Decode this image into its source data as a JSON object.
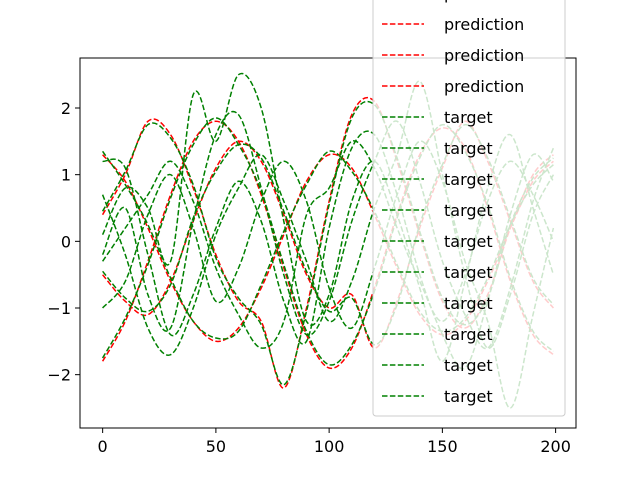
{
  "chart_data": {
    "type": "line",
    "title": "",
    "xlabel": "",
    "ylabel": "",
    "xlim": [
      -10,
      209
    ],
    "ylim": [
      -2.8,
      2.75
    ],
    "x_ticks": [
      0,
      50,
      100,
      150,
      200
    ],
    "y_ticks": [
      -2,
      -1,
      0,
      1,
      2
    ],
    "y_tick_labels": [
      "−2",
      "−1",
      "0",
      "1",
      "2"
    ],
    "grid": false,
    "legend": {
      "placement": "top-right",
      "entries": [
        {
          "label": "prediction",
          "color": "#ff0000"
        },
        {
          "label": "prediction",
          "color": "#ff0000"
        },
        {
          "label": "prediction",
          "color": "#ff0000"
        },
        {
          "label": "prediction",
          "color": "#ff0000"
        },
        {
          "label": "target",
          "color": "#008000"
        },
        {
          "label": "target",
          "color": "#008000"
        },
        {
          "label": "target",
          "color": "#008000"
        },
        {
          "label": "target",
          "color": "#008000"
        },
        {
          "label": "target",
          "color": "#008000"
        },
        {
          "label": "target",
          "color": "#008000"
        },
        {
          "label": "target",
          "color": "#008000"
        },
        {
          "label": "target",
          "color": "#008000"
        },
        {
          "label": "target",
          "color": "#008000"
        },
        {
          "label": "target",
          "color": "#008000"
        }
      ]
    },
    "x": [
      0,
      10,
      20,
      30,
      40,
      50,
      60,
      70,
      80,
      90,
      100,
      110,
      120,
      130,
      140,
      150,
      160,
      170,
      180,
      190,
      199
    ],
    "series": [
      {
        "role": "prediction",
        "color": "#ff0000",
        "values": [
          1.3,
          0.9,
          0.2,
          -0.6,
          -1.2,
          -1.5,
          -1.3,
          -0.7,
          0.1,
          0.9,
          1.3,
          1.1,
          0.4,
          -0.4,
          -1.1,
          -1.4,
          -1.2,
          -0.6,
          0.2,
          0.9,
          1.2
        ]
      },
      {
        "role": "prediction",
        "color": "#ff0000",
        "values": [
          -1.8,
          -1.2,
          -0.3,
          0.7,
          1.5,
          1.8,
          1.5,
          0.7,
          -0.4,
          -1.4,
          -1.9,
          -1.6,
          -0.7,
          0.4,
          1.3,
          1.7,
          1.4,
          0.5,
          -0.6,
          -1.4,
          -1.7
        ]
      },
      {
        "role": "prediction",
        "color": "#ff0000",
        "values": [
          0.4,
          1.0,
          1.8,
          1.6,
          0.8,
          -0.2,
          -0.9,
          -1.2,
          -2.2,
          -1.0,
          0.6,
          1.9,
          2.1,
          1.2,
          0.1,
          -0.9,
          -1.3,
          -0.8,
          0.2,
          1.0,
          1.3
        ]
      },
      {
        "role": "prediction",
        "color": "#ff0000",
        "values": [
          -0.5,
          -0.9,
          -1.1,
          -0.6,
          0.3,
          1.1,
          1.5,
          1.2,
          0.4,
          -0.5,
          -1.0,
          -0.8,
          -1.6,
          -0.9,
          0.2,
          1.1,
          1.8,
          1.2,
          0.3,
          -0.6,
          -1.0
        ]
      },
      {
        "role": "target",
        "color": "#008000",
        "values": [
          1.35,
          0.85,
          0.25,
          -0.55,
          -1.2,
          -1.45,
          -1.35,
          -0.65,
          0.15,
          0.85,
          1.35,
          1.05,
          0.45,
          -0.35,
          -1.05,
          -1.35,
          -1.15,
          -0.55,
          0.25,
          0.85,
          1.15
        ]
      },
      {
        "role": "target",
        "color": "#008000",
        "values": [
          -1.75,
          -1.15,
          -0.35,
          0.65,
          1.45,
          1.85,
          1.45,
          0.75,
          -0.35,
          -1.35,
          -1.85,
          -1.55,
          -0.75,
          0.35,
          1.25,
          1.75,
          1.35,
          0.55,
          -0.55,
          -1.35,
          -1.65
        ]
      },
      {
        "role": "target",
        "color": "#008000",
        "values": [
          0.45,
          1.05,
          1.75,
          1.55,
          0.85,
          -0.25,
          -0.85,
          -1.25,
          -2.15,
          -1.05,
          0.55,
          1.85,
          2.05,
          1.25,
          0.15,
          -0.85,
          -1.25,
          -0.85,
          0.25,
          0.95,
          1.25
        ]
      },
      {
        "role": "target",
        "color": "#008000",
        "values": [
          -0.45,
          -0.85,
          -1.05,
          -0.65,
          0.35,
          1.05,
          1.45,
          1.25,
          0.45,
          -0.45,
          -1.05,
          -0.85,
          -1.55,
          -0.95,
          0.25,
          1.15,
          1.75,
          1.25,
          0.35,
          -0.55,
          -0.95
        ]
      },
      {
        "role": "target",
        "color": "#008000",
        "values": [
          0.1,
          0.8,
          0.5,
          -0.3,
          2.2,
          1.5,
          2.5,
          2.0,
          0.3,
          -1.2,
          -0.8,
          0.6,
          1.2,
          0.4,
          -0.7,
          -1.8,
          -0.6,
          0.8,
          1.6,
          0.5,
          -0.5
        ]
      },
      {
        "role": "target",
        "color": "#008000",
        "values": [
          -0.3,
          0.2,
          0.7,
          1.2,
          0.6,
          -0.4,
          -1.1,
          -1.6,
          -1.2,
          0.4,
          0.8,
          1.5,
          1.1,
          0.2,
          -0.6,
          -1.2,
          -0.5,
          0.6,
          1.2,
          0.7,
          0.0
        ]
      },
      {
        "role": "target",
        "color": "#008000",
        "values": [
          1.2,
          1.1,
          -0.2,
          -1.4,
          -0.8,
          0.2,
          0.9,
          0.3,
          -0.9,
          -1.5,
          0.2,
          1.4,
          1.6,
          0.7,
          -0.5,
          -1.4,
          -1.9,
          -0.9,
          0.4,
          1.3,
          0.9
        ]
      },
      {
        "role": "target",
        "color": "#008000",
        "values": [
          -1.0,
          -0.6,
          0.4,
          1.0,
          0.2,
          -0.9,
          -0.4,
          0.6,
          1.2,
          0.6,
          -0.7,
          -1.3,
          -0.4,
          0.7,
          1.5,
          0.9,
          -0.3,
          -1.2,
          -2.5,
          -1.1,
          0.2
        ]
      },
      {
        "role": "target",
        "color": "#008000",
        "values": [
          0.7,
          -0.2,
          -1.3,
          -1.7,
          -1.0,
          0.1,
          0.8,
          1.3,
          0.6,
          -0.3,
          -1.2,
          -0.6,
          0.5,
          1.3,
          2.4,
          1.0,
          -0.5,
          -1.6,
          -0.8,
          0.4,
          1.0
        ]
      },
      {
        "role": "target",
        "color": "#008000",
        "values": [
          -0.2,
          0.5,
          -0.8,
          -1.3,
          0.3,
          1.6,
          1.9,
          0.8,
          -0.5,
          -1.4,
          -0.9,
          0.3,
          1.2,
          1.8,
          0.9,
          -0.3,
          -1.1,
          -1.6,
          -0.7,
          0.6,
          1.4
        ]
      }
    ]
  }
}
